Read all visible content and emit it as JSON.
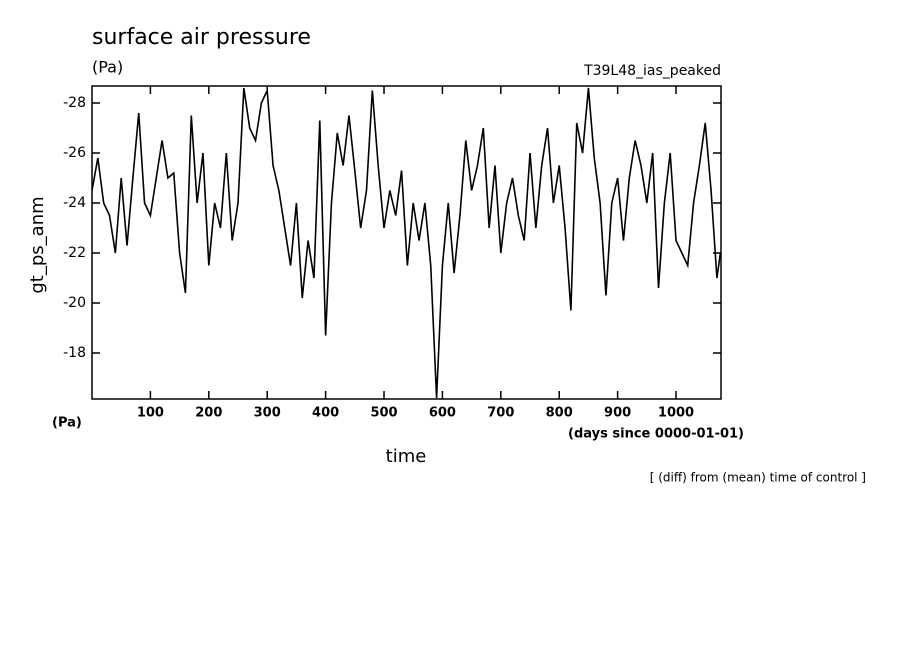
{
  "chart_data": {
    "type": "line",
    "title": "surface air pressure",
    "subtitle": "(Pa)",
    "run_label": "T39L48_ias_peaked",
    "ylabel": "gt_ps_anm",
    "yunit": "(Pa)",
    "xlabel": "time",
    "xunit": "(days since 0000-01-01)",
    "note": "[ (diff) from (mean) time of control ]",
    "x": [
      0,
      10,
      20,
      30,
      40,
      50,
      60,
      70,
      80,
      90,
      100,
      110,
      120,
      130,
      140,
      150,
      160,
      170,
      180,
      190,
      200,
      210,
      220,
      230,
      240,
      250,
      260,
      270,
      280,
      290,
      300,
      310,
      320,
      330,
      340,
      350,
      360,
      370,
      380,
      390,
      400,
      410,
      420,
      430,
      440,
      450,
      460,
      470,
      480,
      490,
      500,
      510,
      520,
      530,
      540,
      550,
      560,
      570,
      580,
      590,
      600,
      610,
      620,
      630,
      640,
      650,
      660,
      670,
      680,
      690,
      700,
      710,
      720,
      730,
      740,
      750,
      760,
      770,
      780,
      790,
      800,
      810,
      820,
      830,
      840,
      850,
      860,
      870,
      880,
      890,
      900,
      910,
      920,
      930,
      940,
      950,
      960,
      970,
      980,
      990,
      1000,
      1010,
      1020,
      1030,
      1040,
      1050,
      1060,
      1070,
      1076
    ],
    "series": [
      {
        "color": "#000000",
        "values": [
          -24.5,
          -25.8,
          -24,
          -23.5,
          -22,
          -25,
          -22.3,
          -25,
          -27.6,
          -24,
          -23.5,
          -25,
          -26.5,
          -25,
          -25.2,
          -22,
          -20.4,
          -27.5,
          -24,
          -26,
          -21.5,
          -24,
          -23,
          -26,
          -22.5,
          -24,
          -28.6,
          -27,
          -26.5,
          -28,
          -28.5,
          -25.5,
          -24.5,
          -23,
          -21.5,
          -24,
          -20.2,
          -22.5,
          -21,
          -27.3,
          -18.7,
          -24,
          -26.8,
          -25.5,
          -27.5,
          -25.3,
          -23,
          -24.5,
          -28.5,
          -25.5,
          -23,
          -24.5,
          -23.5,
          -25.3,
          -21.5,
          -24,
          -22.5,
          -24,
          -21.5,
          -16.2,
          -21.5,
          -24,
          -21.2,
          -23.5,
          -26.5,
          -24.5,
          -25.5,
          -27,
          -23,
          -25.5,
          -22,
          -24,
          -25,
          -23.5,
          -22.5,
          -26,
          -23,
          -25.5,
          -27,
          -24,
          -25.5,
          -23,
          -19.7,
          -27.2,
          -26,
          -28.6,
          -25.8,
          -24,
          -20.3,
          -24,
          -25,
          -22.5,
          -25,
          -26.5,
          -25.5,
          -24,
          -26,
          -20.6,
          -24,
          -26,
          -22.5,
          -22,
          -21.5,
          -24,
          -25.5,
          -27.2,
          -24.5,
          -21,
          -22
        ]
      }
    ],
    "xlim": [
      0,
      1077
    ],
    "xticks": [
      100,
      200,
      300,
      400,
      500,
      600,
      700,
      800,
      900,
      1000
    ],
    "ylim": [
      -16.16,
      -28.68
    ],
    "yticks": [
      -28,
      -26,
      -24,
      -22,
      -20,
      -18
    ]
  }
}
